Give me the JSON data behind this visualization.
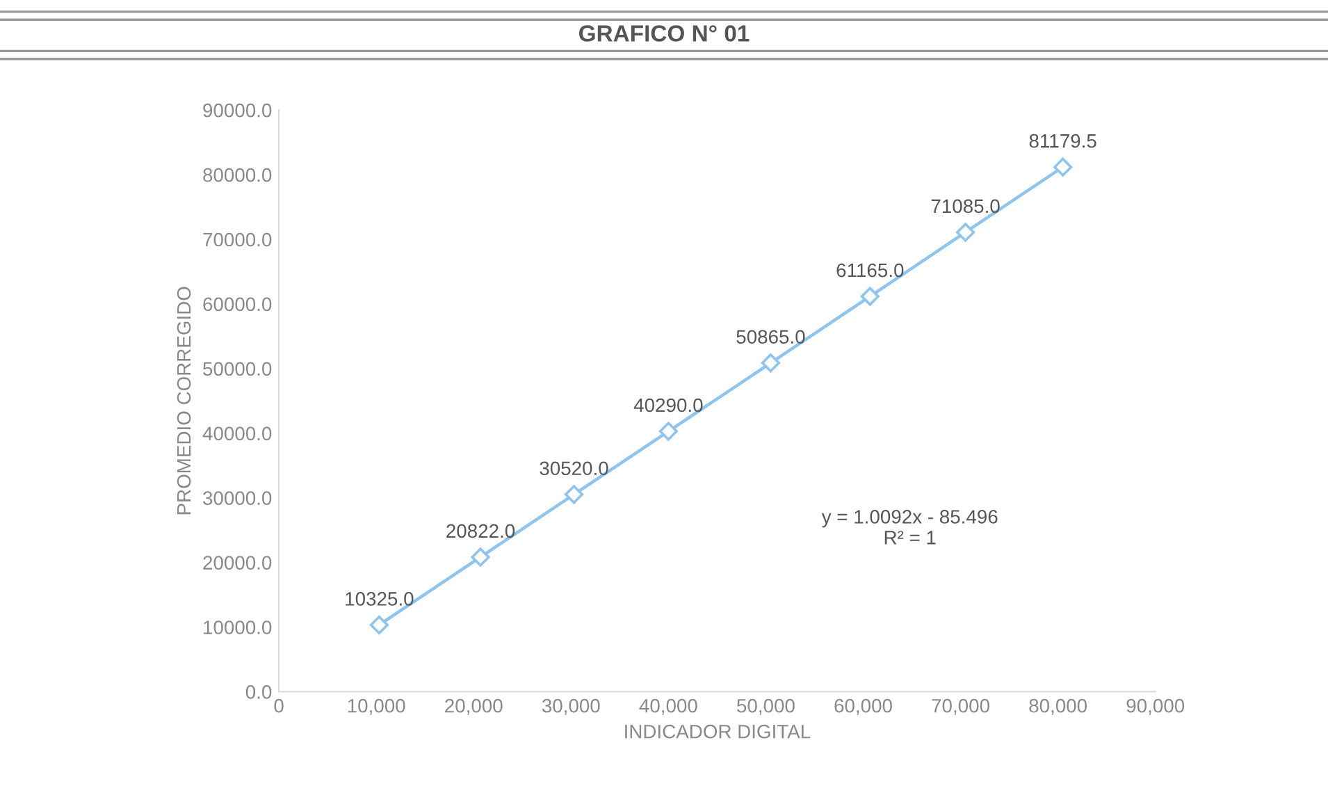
{
  "chart_data": {
    "type": "line",
    "title": "GRAFICO N° 01",
    "xlabel": "INDICADOR DIGITAL",
    "ylabel": "PROMEDIO CORREGIDO",
    "x": [
      10300,
      20700,
      30300,
      40000,
      50500,
      60700,
      70500,
      80500
    ],
    "series": [
      {
        "color": "#8ec5ee",
        "values": [
          10325,
          20822,
          30520,
          40290,
          50865,
          61165,
          71085,
          81179.5
        ],
        "value_labels": [
          "10325.0",
          "20822.0",
          "30520.0",
          "40290.0",
          "50865.0",
          "61165.0",
          "71085.0",
          "81179.5"
        ]
      }
    ],
    "xlim": [
      0,
      90000
    ],
    "xticks": [
      {
        "value": 0,
        "label": "0"
      },
      {
        "value": 10000,
        "label": "10,000"
      },
      {
        "value": 20000,
        "label": "20,000"
      },
      {
        "value": 30000,
        "label": "30,000"
      },
      {
        "value": 40000,
        "label": "40,000"
      },
      {
        "value": 50000,
        "label": "50,000"
      },
      {
        "value": 60000,
        "label": "60,000"
      },
      {
        "value": 70000,
        "label": "70,000"
      },
      {
        "value": 80000,
        "label": "80,000"
      },
      {
        "value": 90000,
        "label": "90,000"
      }
    ],
    "ylim": [
      0,
      90000
    ],
    "yticks": [
      {
        "value": 0,
        "label": "0.0"
      },
      {
        "value": 10000,
        "label": "10000.0"
      },
      {
        "value": 20000,
        "label": "20000.0"
      },
      {
        "value": 30000,
        "label": "30000.0"
      },
      {
        "value": 40000,
        "label": "40000.0"
      },
      {
        "value": 50000,
        "label": "50000.0"
      },
      {
        "value": 60000,
        "label": "60000.0"
      },
      {
        "value": 70000,
        "label": "70000.0"
      },
      {
        "value": 80000,
        "label": "80000.0"
      },
      {
        "value": 90000,
        "label": "90000.0"
      }
    ],
    "annotations": [
      "y = 1.0092x - 85.496\nR² = 1"
    ],
    "marker": "diamond",
    "line_style": "solid",
    "grid": false,
    "legend": false
  }
}
